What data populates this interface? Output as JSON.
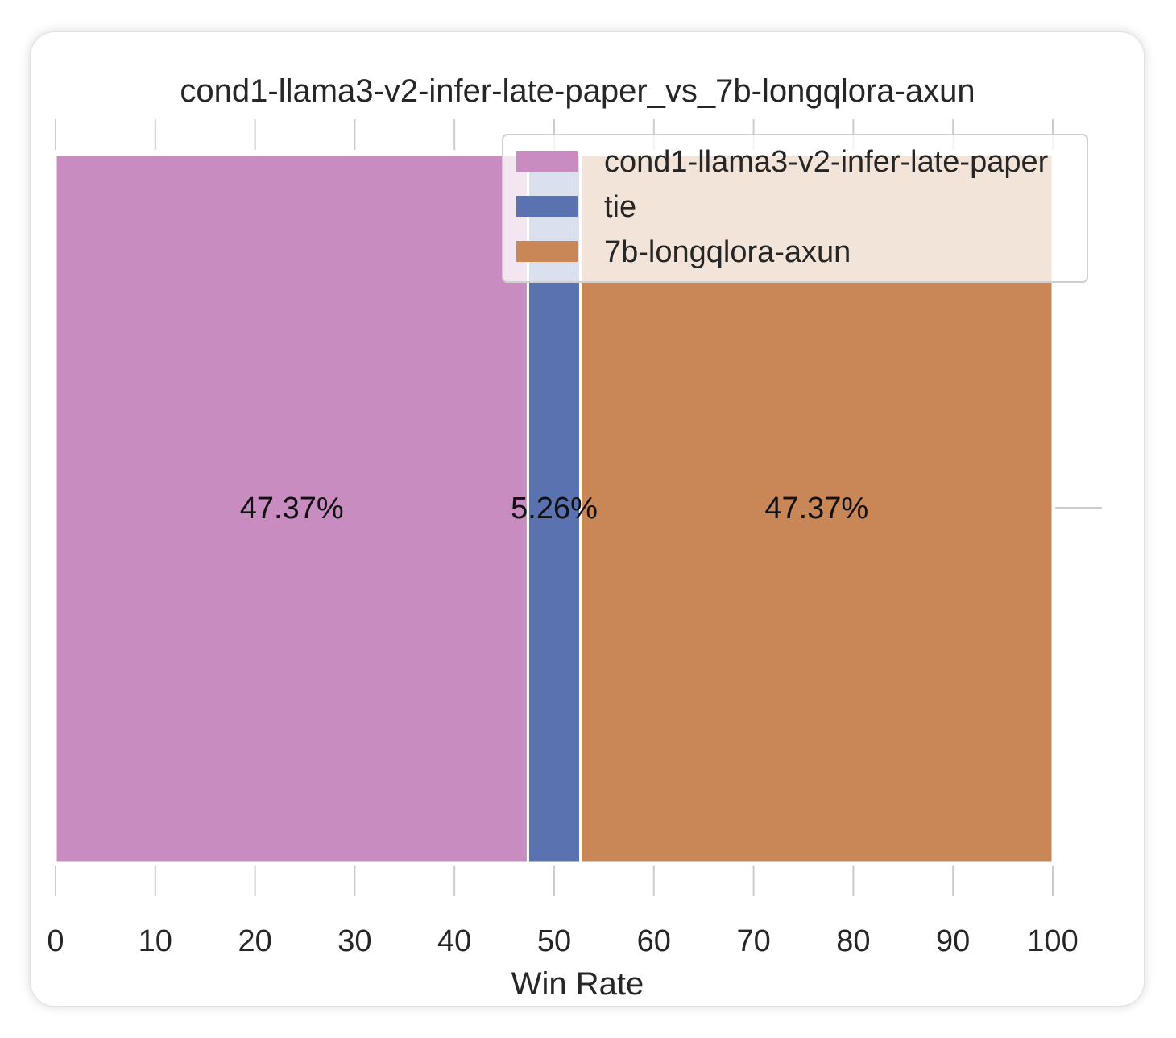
{
  "chart_data": {
    "type": "bar",
    "orientation": "horizontal-stacked",
    "title": "cond1-llama3-v2-infer-late-paper_vs_7b-longqlora-axun",
    "xlabel": "Win Rate",
    "ylabel": "",
    "xlim": [
      0,
      100
    ],
    "xticks": [
      "0",
      "10",
      "20",
      "30",
      "40",
      "50",
      "60",
      "70",
      "80",
      "90",
      "100"
    ],
    "grid": false,
    "legend_position": "top-right",
    "series": [
      {
        "name": "cond1-llama3-v2-infer-late-paper",
        "value": 47.37,
        "label": "47.37%",
        "color": "#c98cc1"
      },
      {
        "name": "tie",
        "value": 5.26,
        "label": "5.26%",
        "color": "#5b72b0"
      },
      {
        "name": "7b-longqlora-axun",
        "value": 47.37,
        "label": "47.37%",
        "color": "#c98656"
      }
    ]
  }
}
